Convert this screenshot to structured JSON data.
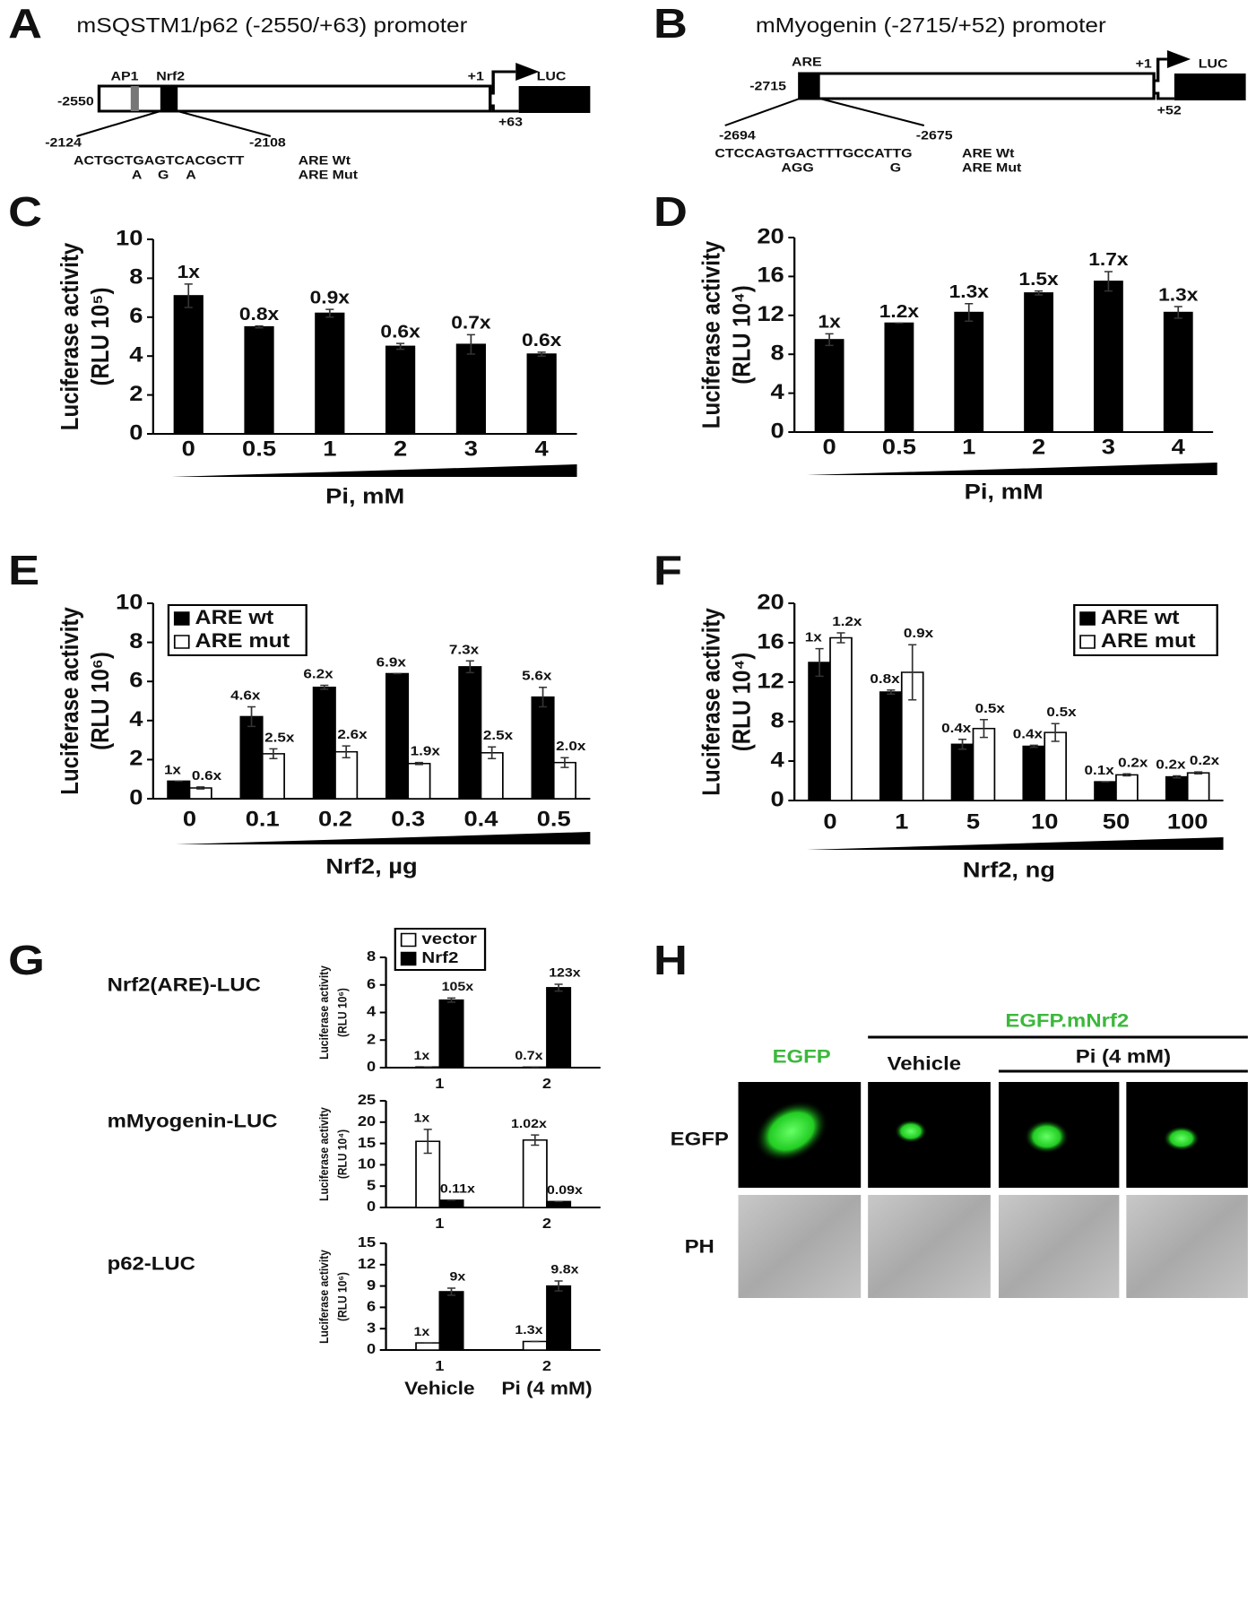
{
  "diagrams": [
    {
      "panel": "A",
      "title": "mSQSTM1/p62 (-2550/+63) promoter",
      "labels": [
        "AP1",
        "Nrf2",
        "+1",
        "LUC",
        "-2550",
        "+63",
        "-2124",
        "-2108"
      ],
      "sequence": "ACTGCTGAGTCACGCTT",
      "mutations": [
        "A",
        "G",
        "A"
      ],
      "rows": [
        "ARE Wt",
        "ARE Mut"
      ]
    },
    {
      "panel": "B",
      "title": "mMyogenin (-2715/+52) promoter",
      "labels": [
        "ARE",
        "+1",
        "LUC",
        "-2715",
        "+52",
        "-2694",
        "-2675"
      ],
      "sequence": "CTCCAGTGACTTTGCCATTG",
      "mutations": [
        "AGG",
        "G"
      ],
      "rows": [
        "ARE Wt",
        "ARE Mut"
      ]
    }
  ],
  "chart_data": [
    {
      "type": "bar",
      "panel": "C",
      "y_label": "Luciferase activity",
      "y_unit": "(RLU 10⁵)",
      "x_label": "Pi, mM",
      "categories": [
        "0",
        "0.5",
        "1",
        "2",
        "3",
        "4"
      ],
      "series": [
        {
          "color": "#000000",
          "values": [
            7.1,
            5.5,
            6.2,
            4.5,
            4.6,
            4.1
          ],
          "errors": [
            0.6,
            0.05,
            0.2,
            0.15,
            0.5,
            0.1
          ],
          "fold_labels": [
            "1x",
            "0.8x",
            "0.9x",
            "0.6x",
            "0.7x",
            "0.6x"
          ]
        }
      ],
      "ylim": [
        0,
        10
      ],
      "yticks": [
        0,
        2,
        4,
        6,
        8,
        10
      ]
    },
    {
      "type": "bar",
      "panel": "D",
      "y_label": "Luciferase activity",
      "y_unit": "(RLU 10⁴)",
      "x_label": "Pi, mM",
      "categories": [
        "0",
        "0.5",
        "1",
        "2",
        "3",
        "4"
      ],
      "series": [
        {
          "color": "#000000",
          "values": [
            9.5,
            11.2,
            12.3,
            14.3,
            15.5,
            12.3
          ],
          "errors": [
            0.6,
            0,
            0.9,
            0.2,
            1.0,
            0.6
          ],
          "fold_labels": [
            "1x",
            "1.2x",
            "1.3x",
            "1.5x",
            "1.7x",
            "1.3x"
          ]
        }
      ],
      "ylim": [
        0,
        20
      ],
      "yticks": [
        0,
        4,
        8,
        12,
        16,
        20
      ]
    },
    {
      "type": "bar",
      "panel": "E",
      "y_label": "Luciferase activity",
      "y_unit": "(RLU 10⁶)",
      "x_label": "Nrf2, µg",
      "categories": [
        "0",
        "0.1",
        "0.2",
        "0.3",
        "0.4",
        "0.5"
      ],
      "legend": "upper left",
      "series": [
        {
          "name": "ARE wt",
          "color": "#000000",
          "values": [
            0.9,
            4.2,
            5.7,
            6.4,
            6.75,
            5.2
          ],
          "errors": [
            0,
            0.5,
            0.1,
            0,
            0.3,
            0.5
          ],
          "fold_labels": [
            "1x",
            "4.6x",
            "6.2x",
            "6.9x",
            "7.3x",
            "5.6x"
          ]
        },
        {
          "name": "ARE mut",
          "color": "#ffffff",
          "values": [
            0.55,
            2.3,
            2.4,
            1.8,
            2.35,
            1.85
          ],
          "errors": [
            0.05,
            0.25,
            0.3,
            0.05,
            0.3,
            0.25
          ],
          "fold_labels": [
            "0.6x",
            "2.5x",
            "2.6x",
            "1.9x",
            "2.5x",
            "2.0x"
          ]
        }
      ],
      "ylim": [
        0,
        10
      ],
      "yticks": [
        0,
        2,
        4,
        6,
        8,
        10
      ]
    },
    {
      "type": "bar",
      "panel": "F",
      "y_label": "Luciferase activity",
      "y_unit": "(RLU 10⁴)",
      "x_label": "Nrf2, ng",
      "categories": [
        "0",
        "1",
        "5",
        "10",
        "50",
        "100"
      ],
      "legend": "upper right",
      "series": [
        {
          "name": "ARE wt",
          "color": "#000000",
          "values": [
            14,
            11,
            5.7,
            5.5,
            1.9,
            2.4
          ],
          "errors": [
            1.4,
            0.2,
            0.5,
            0.1,
            0,
            0.1
          ],
          "fold_labels": [
            "1x",
            "0.8x",
            "0.4x",
            "0.4x",
            "0.1x",
            "0.2x"
          ]
        },
        {
          "name": "ARE mut",
          "color": "#ffffff",
          "values": [
            16.5,
            13,
            7.3,
            6.9,
            2.6,
            2.8
          ],
          "errors": [
            0.5,
            2.8,
            0.9,
            0.9,
            0.1,
            0.1
          ],
          "fold_labels": [
            "1.2x",
            "0.9x",
            "0.5x",
            "0.5x",
            "0.2x",
            "0.2x"
          ]
        }
      ],
      "ylim": [
        0,
        20
      ],
      "yticks": [
        0,
        4,
        8,
        12,
        16,
        20
      ]
    },
    {
      "type": "bar",
      "panel": "G",
      "row_label": "Nrf2(ARE)-LUC",
      "y_label": "Luciferase activity",
      "y_unit": "(RLU 10⁶)",
      "categories": [
        "1",
        "2"
      ],
      "legend": "top",
      "series": [
        {
          "name": "vector",
          "color": "#ffffff",
          "values": [
            0.05,
            0.04
          ],
          "errors": [
            0,
            0
          ],
          "fold_labels": [
            "1x",
            "0.7x"
          ]
        },
        {
          "name": "Nrf2",
          "color": "#000000",
          "values": [
            4.9,
            5.8
          ],
          "errors": [
            0.15,
            0.25
          ],
          "fold_labels": [
            "105x",
            "123x"
          ]
        }
      ],
      "ylim": [
        0,
        8
      ],
      "yticks": [
        0,
        2,
        4,
        6,
        8
      ]
    },
    {
      "type": "bar",
      "row_label": "mMyogenin-LUC",
      "y_label": "Luciferase activity",
      "y_unit": "(RLU 10⁴)",
      "categories": [
        "1",
        "2"
      ],
      "series": [
        {
          "color": "#ffffff",
          "values": [
            15.5,
            15.8
          ],
          "errors": [
            2.8,
            1.2
          ],
          "fold_labels": [
            "1x",
            "1.02x"
          ]
        },
        {
          "color": "#000000",
          "values": [
            1.7,
            1.4
          ],
          "errors": [
            0,
            0
          ],
          "fold_labels": [
            "0.11x",
            "0.09x"
          ]
        }
      ],
      "ylim": [
        0,
        25
      ],
      "yticks": [
        0,
        5,
        10,
        15,
        20,
        25
      ]
    },
    {
      "type": "bar",
      "row_label": "p62-LUC",
      "y_label": "Luciferase activity",
      "y_unit": "(RLU 10⁶)",
      "categories": [
        "1",
        "2"
      ],
      "category_notes": [
        "Vehicle",
        "Pi (4 mM)"
      ],
      "series": [
        {
          "color": "#ffffff",
          "values": [
            1,
            1.2
          ],
          "errors": [
            0,
            0
          ],
          "fold_labels": [
            "1x",
            "1.3x"
          ]
        },
        {
          "color": "#000000",
          "values": [
            8.2,
            9
          ],
          "errors": [
            0.5,
            0.7
          ],
          "fold_labels": [
            "9x",
            "9.8x"
          ]
        }
      ],
      "ylim": [
        0,
        15
      ],
      "yticks": [
        0,
        3,
        6,
        9,
        12,
        15
      ]
    }
  ],
  "panel_h": {
    "panel": "H",
    "group_header": "EGFP.mNrf2",
    "column_headers": [
      "EGFP",
      "Vehicle",
      "Pi (4 mM)"
    ],
    "row_labels": [
      "EGFP",
      "PH"
    ]
  }
}
